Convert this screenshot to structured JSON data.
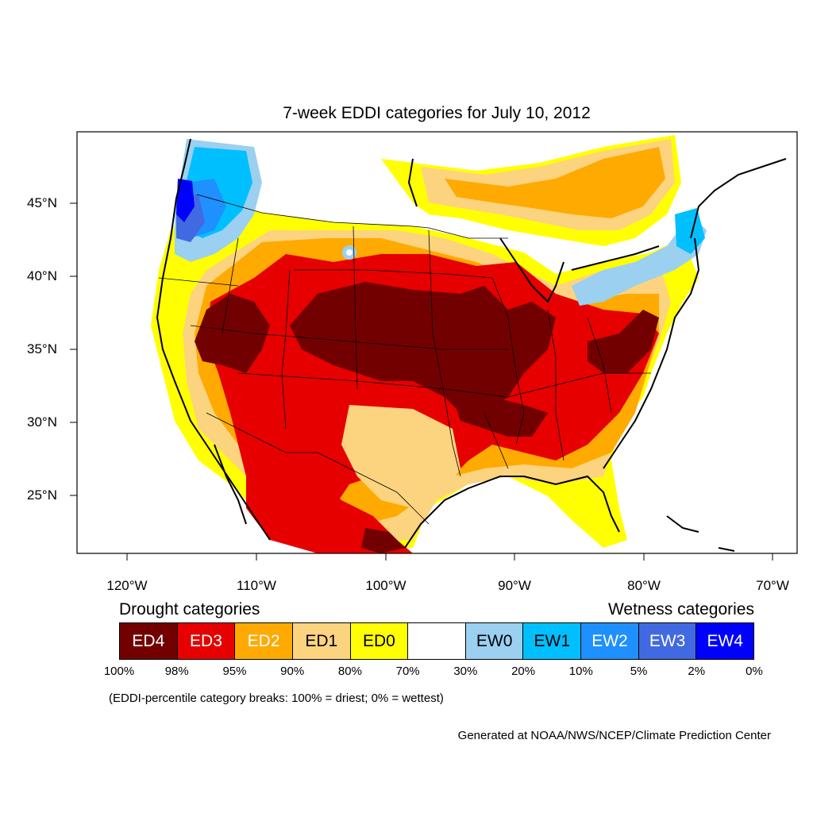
{
  "title": "7-week EDDI categories for July 10, 2012",
  "lat_labels": [
    "45°N",
    "40°N",
    "35°N",
    "30°N",
    "25°N"
  ],
  "lon_labels": [
    "120°W",
    "110°W",
    "100°W",
    "90°W",
    "80°W",
    "70°W"
  ],
  "legend": {
    "drought_heading": "Drought categories",
    "wetness_heading": "Wetness categories",
    "categories": [
      {
        "label": "ED4",
        "color": "#730000",
        "text_color": "#ffffff"
      },
      {
        "label": "ED3",
        "color": "#e60000",
        "text_color": "#ffffff"
      },
      {
        "label": "ED2",
        "color": "#ffaa00",
        "text_color": "#ffffff"
      },
      {
        "label": "ED1",
        "color": "#fcd37f",
        "text_color": "#000000"
      },
      {
        "label": "ED0",
        "color": "#ffff00",
        "text_color": "#000000"
      },
      {
        "label": "",
        "color": "#ffffff",
        "text_color": "#000000"
      },
      {
        "label": "EW0",
        "color": "#9bd0f0",
        "text_color": "#000000"
      },
      {
        "label": "EW1",
        "color": "#00bfff",
        "text_color": "#000000"
      },
      {
        "label": "EW2",
        "color": "#1e90ff",
        "text_color": "#ffffff"
      },
      {
        "label": "EW3",
        "color": "#4169e1",
        "text_color": "#ffffff"
      },
      {
        "label": "EW4",
        "color": "#0000ff",
        "text_color": "#ffffff"
      }
    ],
    "breaks": [
      "100%",
      "98%",
      "95%",
      "90%",
      "80%",
      "70%",
      "30%",
      "20%",
      "10%",
      "5%",
      "2%",
      "0%"
    ]
  },
  "note": "(EDDI-percentile category breaks: 100% = driest; 0% = wettest)",
  "credit": "Generated at NOAA/NWS/NCEP/Climate Prediction Center"
}
